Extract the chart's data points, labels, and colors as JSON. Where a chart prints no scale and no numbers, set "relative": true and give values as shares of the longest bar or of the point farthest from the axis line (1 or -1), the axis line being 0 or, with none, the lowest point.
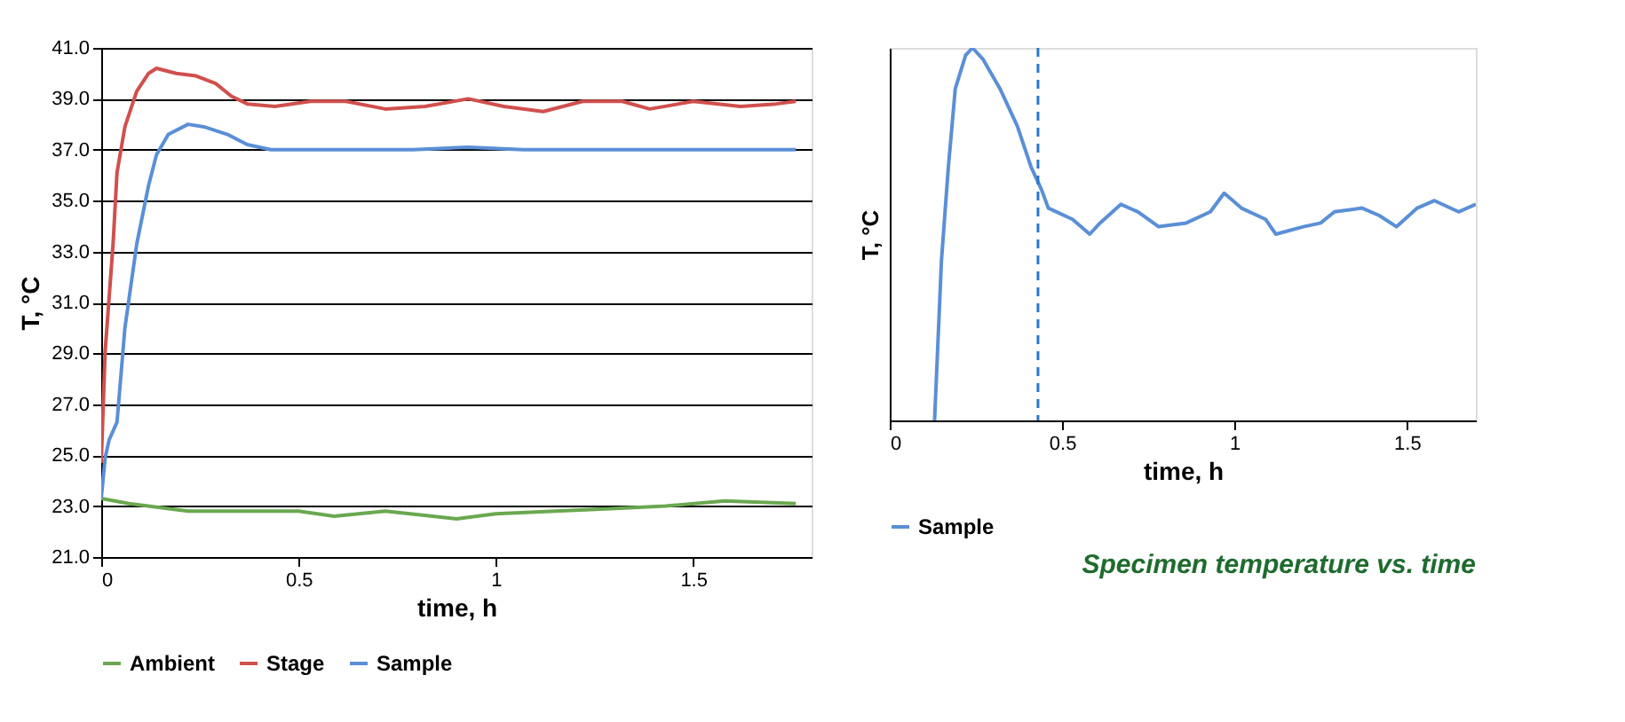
{
  "chart_data": [
    {
      "type": "line",
      "xlabel": "time, h",
      "ylabel": "T, °C",
      "xlim": [
        0,
        1.8
      ],
      "xticks": [
        0,
        0.5,
        1,
        1.5
      ],
      "ylim": [
        21,
        41
      ],
      "yticks": [
        {
          "value": 21,
          "label": "21.0"
        },
        {
          "value": 23,
          "label": "23.0"
        },
        {
          "value": 25,
          "label": "25.0"
        },
        {
          "value": 27,
          "label": "27.0"
        },
        {
          "value": 29,
          "label": "29.0"
        },
        {
          "value": 31,
          "label": "31.0"
        },
        {
          "value": 33,
          "label": "33.0"
        },
        {
          "value": 35,
          "label": "35.0"
        },
        {
          "value": 37,
          "label": "37.0"
        },
        {
          "value": 39,
          "label": "39.0"
        },
        {
          "value": 41,
          "label": "41.0"
        }
      ],
      "grid": "y",
      "legend": "bottom",
      "marker": "none",
      "series": [
        {
          "name": "Ambient",
          "color": "#6aa84f",
          "x": [
            0,
            0.07,
            0.22,
            0.36,
            0.5,
            0.59,
            0.72,
            0.9,
            1.0,
            1.15,
            1.29,
            1.43,
            1.58,
            1.76
          ],
          "values": [
            23.3,
            23.1,
            22.8,
            22.8,
            22.8,
            22.6,
            22.8,
            22.5,
            22.7,
            22.8,
            22.9,
            23.0,
            23.2,
            23.1
          ]
        },
        {
          "name": "Stage",
          "color": "#d0504d",
          "x": [
            0,
            0.01,
            0.03,
            0.04,
            0.06,
            0.09,
            0.12,
            0.14,
            0.19,
            0.24,
            0.29,
            0.33,
            0.37,
            0.44,
            0.53,
            0.62,
            0.72,
            0.82,
            0.93,
            1.02,
            1.12,
            1.22,
            1.32,
            1.39,
            1.5,
            1.62,
            1.71,
            1.76
          ],
          "values": [
            24.7,
            29.1,
            33.3,
            36.1,
            37.9,
            39.3,
            40.0,
            40.2,
            40.0,
            39.9,
            39.6,
            39.1,
            38.8,
            38.7,
            38.9,
            38.9,
            38.6,
            38.7,
            39.0,
            38.7,
            38.5,
            38.9,
            38.9,
            38.6,
            38.9,
            38.7,
            38.8,
            38.9
          ]
        },
        {
          "name": "Sample",
          "color": "#5b8fd6",
          "x": [
            0,
            0.01,
            0.02,
            0.04,
            0.06,
            0.09,
            0.12,
            0.14,
            0.17,
            0.22,
            0.26,
            0.32,
            0.37,
            0.43,
            0.53,
            0.65,
            0.79,
            0.93,
            1.07,
            1.22,
            1.36,
            1.5,
            1.65,
            1.76
          ],
          "values": [
            23.3,
            24.9,
            25.6,
            26.3,
            30.0,
            33.3,
            35.6,
            36.8,
            37.6,
            38.0,
            37.9,
            37.6,
            37.2,
            37.0,
            37.0,
            37.0,
            37.0,
            37.1,
            37.0,
            37.0,
            37.0,
            37.0,
            37.0,
            37.0
          ]
        }
      ]
    },
    {
      "type": "line",
      "relative": true,
      "xlabel": "time, h",
      "ylabel": "T, °C",
      "xlim": [
        0,
        1.7
      ],
      "xticks": [
        0,
        0.5,
        1,
        1.5
      ],
      "legend": "bottom",
      "marker": "none",
      "ref_lines": [
        {
          "axis": "x",
          "value": 0.43,
          "color": "#2e75c8",
          "line_style": "dashed"
        }
      ],
      "annotations": [
        "Specimen temperature vs. time"
      ],
      "series": [
        {
          "name": "Sample",
          "color": "#5b8fd6",
          "x": [
            0.13,
            0.15,
            0.17,
            0.19,
            0.22,
            0.24,
            0.27,
            0.32,
            0.37,
            0.41,
            0.44,
            0.46,
            0.53,
            0.58,
            0.61,
            0.67,
            0.72,
            0.78,
            0.86,
            0.93,
            0.97,
            1.02,
            1.09,
            1.12,
            1.2,
            1.25,
            1.29,
            1.37,
            1.42,
            1.47,
            1.53,
            1.58,
            1.65,
            1.7
          ],
          "values": [
            0,
            0.43,
            0.68,
            0.89,
            0.98,
            1,
            0.97,
            0.89,
            0.79,
            0.68,
            0.62,
            0.57,
            0.54,
            0.5,
            0.53,
            0.58,
            0.56,
            0.52,
            0.53,
            0.56,
            0.61,
            0.57,
            0.54,
            0.5,
            0.52,
            0.53,
            0.56,
            0.57,
            0.55,
            0.52,
            0.57,
            0.59,
            0.56,
            0.58
          ]
        }
      ]
    }
  ]
}
